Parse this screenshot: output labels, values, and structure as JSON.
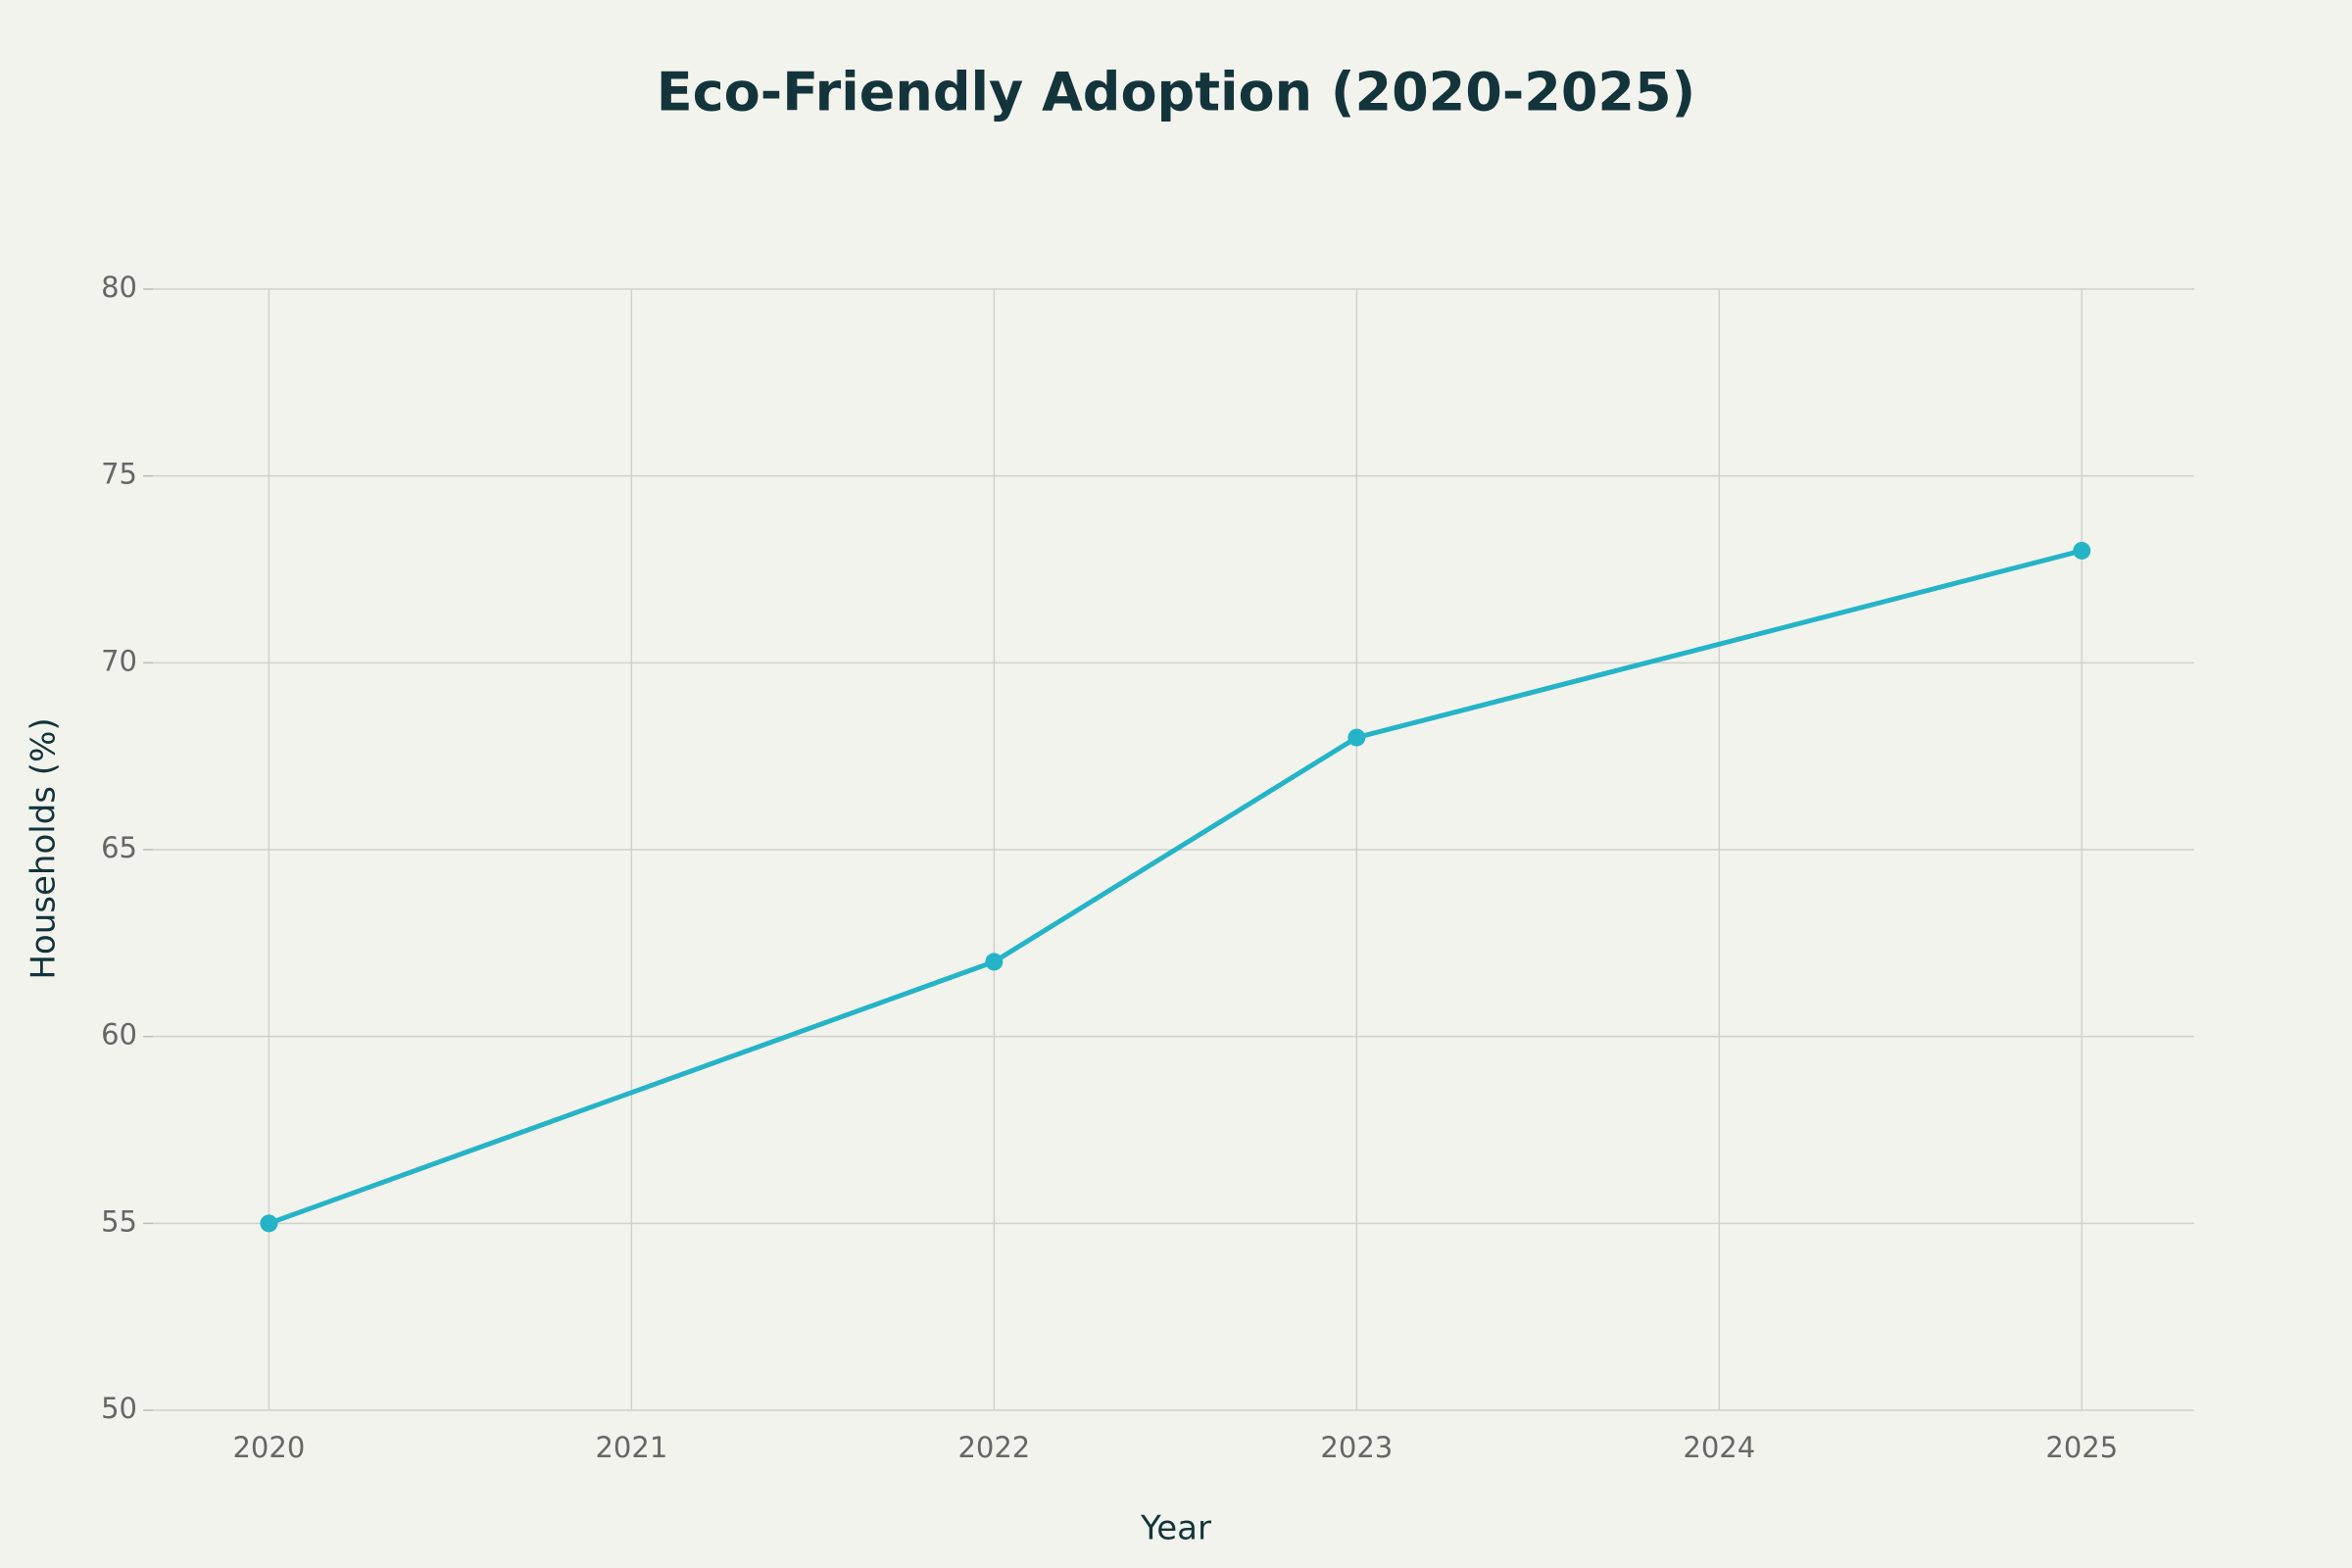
{
  "chart_data": {
    "type": "line",
    "title": "Eco-Friendly Adoption (2020-2025)",
    "x_label": "Year",
    "y_label": "Households (%)",
    "x": [
      2020,
      2022,
      2023,
      2025
    ],
    "values": [
      55,
      62,
      68,
      73
    ],
    "color": "#25b4c7",
    "xlim": [
      2019.68,
      2025.31
    ],
    "xticks": [
      2020,
      2021,
      2022,
      2023,
      2024,
      2025
    ],
    "ylim": [
      50,
      80
    ],
    "yticks": [
      50,
      55,
      60,
      65,
      70,
      75,
      80
    ],
    "grid": true
  }
}
